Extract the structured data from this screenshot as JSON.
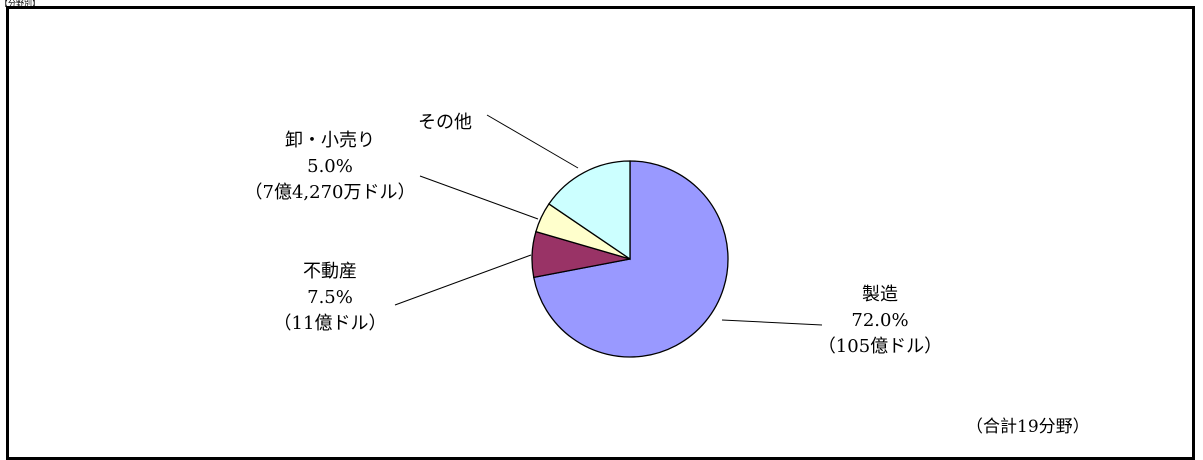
{
  "header_tag": "【分野別】",
  "total_note": "（合計19分野）",
  "colors": {
    "manufacturing": "#9999ff",
    "real_estate": "#993366",
    "retail": "#ffffcc",
    "other": "#ccffff",
    "outline": "#000000"
  },
  "chart_data": {
    "type": "pie",
    "title": "",
    "categories": [
      "製造",
      "不動産",
      "卸・小売り",
      "その他"
    ],
    "values": [
      72.0,
      7.5,
      5.0,
      15.5
    ],
    "series": [
      {
        "name": "",
        "values": [
          72.0,
          7.5,
          5.0,
          15.5
        ]
      }
    ],
    "start_angle_deg": 0,
    "direction": "clockwise",
    "legend": "none",
    "labels": [
      {
        "name": "製造",
        "percent": "72.0%",
        "amount": "（105億ドル）"
      },
      {
        "name": "不動産",
        "percent": "7.5%",
        "amount": "（11億ドル）"
      },
      {
        "name": "卸・小売り",
        "percent": "5.0%",
        "amount": "（7億4,270万ドル）"
      },
      {
        "name": "その他",
        "percent": "",
        "amount": ""
      }
    ]
  }
}
